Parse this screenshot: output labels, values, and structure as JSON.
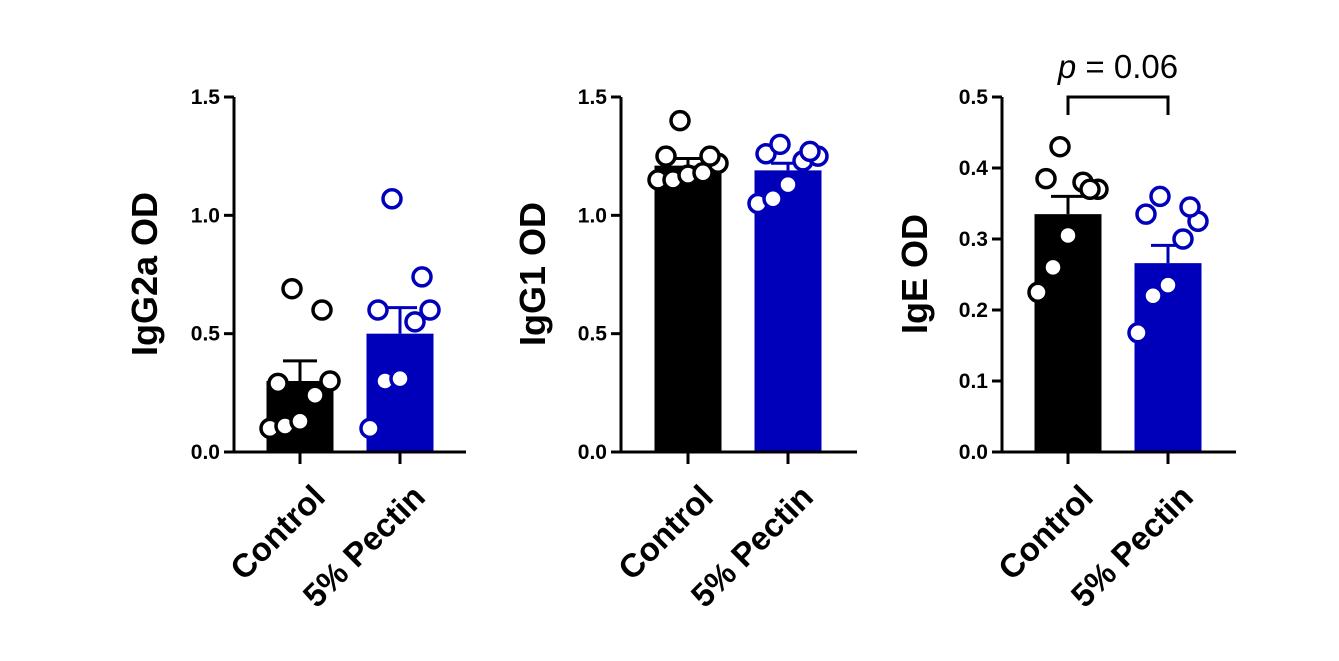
{
  "chart_data": [
    {
      "type": "bar",
      "ylabel": "IgG2a OD",
      "ylim": [
        0,
        1.5
      ],
      "yticks": [
        "0.0",
        "0.5",
        "1.0",
        "1.5"
      ],
      "categories": [
        "Control",
        "5% Pectin"
      ],
      "values": [
        0.3,
        0.5
      ],
      "error": [
        0.085,
        0.11
      ],
      "colors": [
        "#000000",
        "#0000bb"
      ],
      "points": [
        [
          0.1,
          0.11,
          0.13,
          0.24,
          0.3,
          0.29,
          0.6,
          0.69
        ],
        [
          0.1,
          0.3,
          0.31,
          0.55,
          0.6,
          0.6,
          0.74,
          1.07
        ]
      ],
      "annotation": null
    },
    {
      "type": "bar",
      "ylabel": "IgG1 OD",
      "ylim": [
        0,
        1.5
      ],
      "yticks": [
        "0.0",
        "0.5",
        "1.0",
        "1.5"
      ],
      "categories": [
        "Control",
        "5% Pectin"
      ],
      "values": [
        1.21,
        1.19
      ],
      "error": [
        0.03,
        0.03
      ],
      "colors": [
        "#000000",
        "#0000bb"
      ],
      "points": [
        [
          1.15,
          1.15,
          1.17,
          1.18,
          1.22,
          1.25,
          1.25,
          1.4
        ],
        [
          1.05,
          1.07,
          1.13,
          1.23,
          1.25,
          1.26,
          1.27,
          1.3
        ]
      ],
      "annotation": null
    },
    {
      "type": "bar",
      "ylabel": "IgE OD",
      "ylim": [
        0,
        0.5
      ],
      "yticks": [
        "0.0",
        "0.1",
        "0.2",
        "0.3",
        "0.4",
        "0.5"
      ],
      "categories": [
        "Control",
        "5% Pectin"
      ],
      "values": [
        0.335,
        0.266
      ],
      "error": [
        0.025,
        0.025
      ],
      "colors": [
        "#000000",
        "#0000bb"
      ],
      "points": [
        [
          0.225,
          0.26,
          0.305,
          0.38,
          0.37,
          0.385,
          0.37,
          0.43
        ],
        [
          0.168,
          0.22,
          0.235,
          0.3,
          0.325,
          0.335,
          0.345,
          0.36
        ]
      ],
      "annotation": {
        "p_label": "p",
        "value_text": " = 0.06"
      }
    }
  ]
}
